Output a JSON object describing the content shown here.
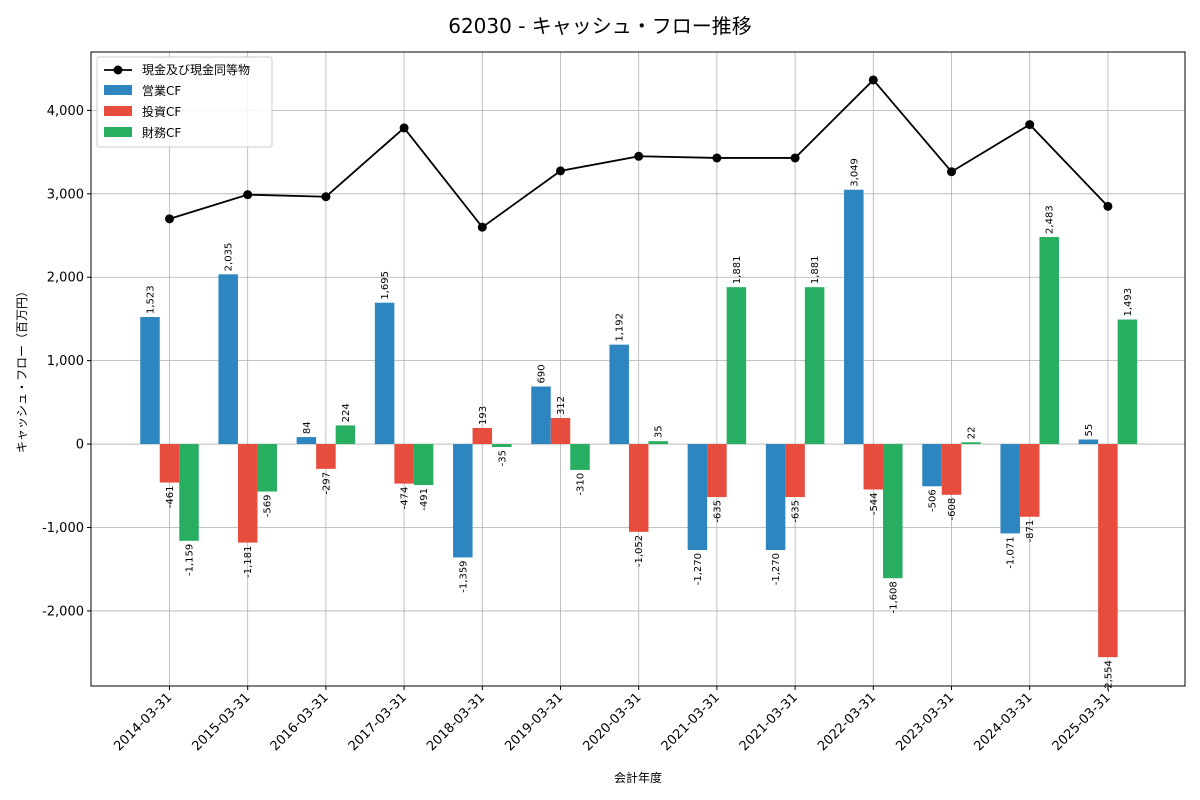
{
  "chart_data": {
    "type": "bar",
    "title": "62030 - キャッシュ・フロー推移",
    "xlabel": "会計年度",
    "ylabel": "キャッシュ・フロー（百万円）",
    "ylim": [
      -2900,
      4700
    ],
    "yticks": [
      -2000,
      -1000,
      0,
      1000,
      2000,
      3000,
      4000
    ],
    "ytick_labels": [
      "-2,000",
      "-1,000",
      "0",
      "1,000",
      "2,000",
      "3,000",
      "4,000"
    ],
    "grid": true,
    "legend_position": "top-left",
    "categories": [
      "2014-03-31",
      "2015-03-31",
      "2016-03-31",
      "2017-03-31",
      "2018-03-31",
      "2019-03-31",
      "2020-03-31",
      "2021-03-31",
      "2021-03-31",
      "2022-03-31",
      "2023-03-31",
      "2024-03-31",
      "2025-03-31"
    ],
    "series": [
      {
        "name": "営業CF",
        "kind": "bar",
        "color": "#2e86c1",
        "values": [
          1523,
          2035,
          84,
          1695,
          -1359,
          690,
          1192,
          -1270,
          -1270,
          3049,
          -506,
          -1071,
          55
        ],
        "labels": [
          "1,523",
          "2,035",
          "84",
          "1,695",
          "-1,359",
          "690",
          "1,192",
          "-1,270",
          "-1,270",
          "3,049",
          "-506",
          "-1,071",
          "55"
        ]
      },
      {
        "name": "投資CF",
        "kind": "bar",
        "color": "#e74c3c",
        "values": [
          -461,
          -1181,
          -297,
          -474,
          193,
          312,
          -1052,
          -635,
          -635,
          -544,
          -608,
          -871,
          -2554
        ],
        "labels": [
          "-461",
          "-1,181",
          "-297",
          "-474",
          "193",
          "312",
          "-1,052",
          "-635",
          "-635",
          "-544",
          "-608",
          "-871",
          "-2,554"
        ]
      },
      {
        "name": "財務CF",
        "kind": "bar",
        "color": "#27ae60",
        "values": [
          -1159,
          -569,
          224,
          -491,
          -35,
          -310,
          35,
          1881,
          1881,
          -1608,
          22,
          2483,
          1493
        ],
        "labels": [
          "-1,159",
          "-569",
          "224",
          "-491",
          "-35",
          "-310",
          "35",
          "1,881",
          "1,881",
          "-1,608",
          "22",
          "2,483",
          "1,493"
        ]
      },
      {
        "name": "現金及び現金同等物",
        "kind": "line",
        "color": "#000000",
        "values": [
          2700,
          2990,
          2965,
          3790,
          2600,
          3275,
          3450,
          3430,
          3430,
          4365,
          3265,
          3830,
          2850
        ]
      }
    ]
  }
}
